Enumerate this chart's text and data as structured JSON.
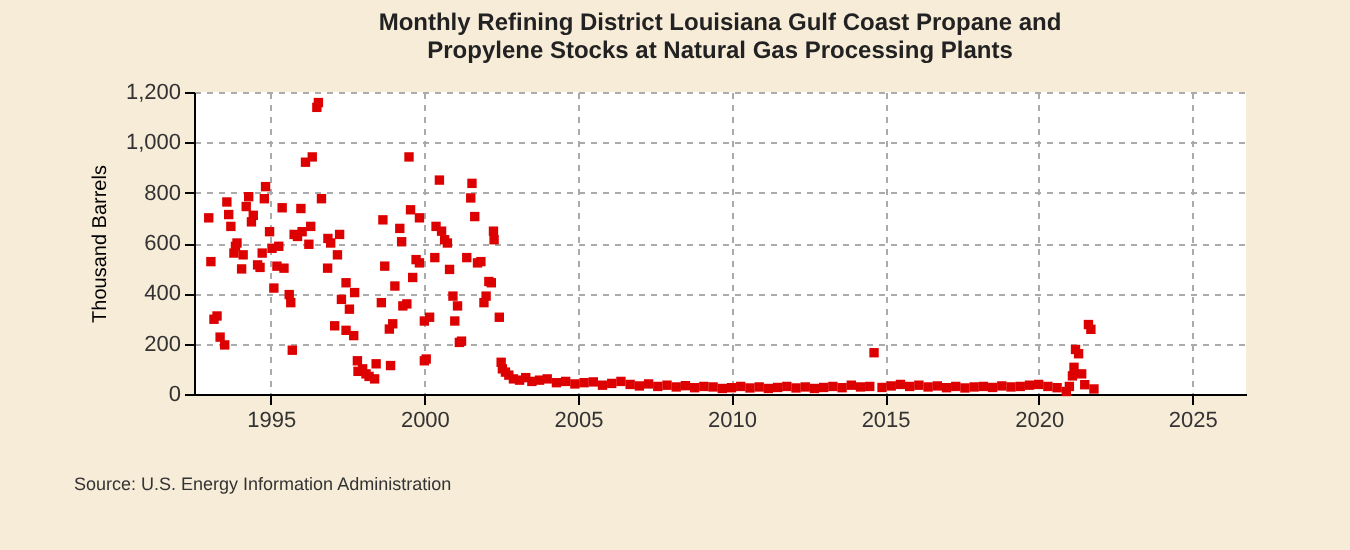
{
  "chart_data": {
    "type": "scatter",
    "title": "Monthly Refining District Louisiana Gulf Coast Propane and Propylene Stocks at Natural Gas Processing Plants",
    "ylabel": "Thousand Barrels",
    "annotations": [
      "Source: U.S. Energy Information Administration"
    ],
    "x": [
      1992.98,
      1993.05,
      1993.15,
      1993.25,
      1993.35,
      1993.5,
      1993.57,
      1993.63,
      1993.7,
      1993.85,
      1993.9,
      1993.8,
      1994.1,
      1994.05,
      1994.2,
      1994.28,
      1994.37,
      1994.43,
      1994.57,
      1994.65,
      1994.72,
      1994.83,
      1994.79,
      1994.96,
      1995.04,
      1995.1,
      1995.2,
      1995.26,
      1995.37,
      1995.43,
      1995.6,
      1995.65,
      1995.7,
      1995.76,
      1995.87,
      1995.98,
      1996.02,
      1996.13,
      1996.24,
      1996.3,
      1996.35,
      1996.5,
      1996.55,
      1996.65,
      1996.86,
      1996.95,
      1997.24,
      1997.17,
      1996.85,
      1997.45,
      1997.3,
      1997.73,
      1997.56,
      1997.08,
      1997.45,
      1997.7,
      1997.82,
      1997.99,
      1998.1,
      1998.2,
      1998.38,
      1998.43,
      1997.84,
      1998.9,
      1998.6,
      1998.65,
      1998.71,
      1998.86,
      1998.97,
      1999.04,
      1999.2,
      1999.26,
      1999.3,
      1999.43,
      1999.5,
      1999.55,
      1999.62,
      1999.73,
      1999.84,
      1999.84,
      2000.0,
      2000.0,
      2000.06,
      2000.17,
      2000.34,
      2000.38,
      2000.49,
      2000.56,
      2000.66,
      2000.75,
      2000.82,
      2000.93,
      2000.99,
      2001.08,
      2001.14,
      2001.21,
      2001.38,
      2001.55,
      2001.51,
      2001.64,
      2001.73,
      2001.84,
      2001.94,
      2002.01,
      2002.1,
      2002.18,
      2002.25,
      2002.27,
      2002.44,
      2002.5,
      2002.54,
      2002.64,
      2002.75,
      2002.9,
      2003.1,
      2003.3,
      2003.5,
      2003.75,
      2004.0,
      2004.3,
      2004.6,
      2004.9,
      2005.2,
      2005.5,
      2005.8,
      2006.1,
      2006.4,
      2006.7,
      2007.0,
      2007.3,
      2007.6,
      2007.9,
      2008.2,
      2008.5,
      2008.8,
      2009.1,
      2009.4,
      2009.7,
      2010.0,
      2010.3,
      2010.6,
      2010.9,
      2011.2,
      2011.5,
      2011.8,
      2012.1,
      2012.4,
      2012.7,
      2013.0,
      2013.3,
      2013.6,
      2013.9,
      2014.2,
      2014.5,
      2014.64,
      2014.9,
      2015.2,
      2015.5,
      2015.8,
      2016.1,
      2016.4,
      2016.7,
      2017.0,
      2017.3,
      2017.6,
      2017.9,
      2018.2,
      2018.5,
      2018.8,
      2019.1,
      2019.4,
      2019.7,
      2020.0,
      2020.3,
      2020.6,
      2020.9,
      2021.0,
      2021.1,
      2021.15,
      2021.2,
      2021.3,
      2021.4,
      2021.5,
      2021.62,
      2021.7,
      2021.8
    ],
    "series": [
      {
        "color": "#dd0000",
        "values": [
          700,
          526,
          297,
          310,
          226,
          195,
          763,
          713,
          666,
          587,
          600,
          560,
          553,
          497,
          745,
          784,
          684,
          710,
          513,
          503,
          560,
          824,
          776,
          645,
          579,
          421,
          508,
          587,
          740,
          500,
          395,
          363,
          174,
          634,
          626,
          737,
          645,
          921,
          595,
          666,
          942,
          1139,
          1158,
          776,
          618,
          600,
          634,
          553,
          500,
          442,
          376,
          403,
          337,
          271,
          253,
          232,
          132,
          100,
          80,
          70,
          60,
          120,
          90,
          113,
          363,
          692,
          508,
          258,
          279,
          429,
          658,
          605,
          350,
          358,
          942,
          732,
          463,
          534,
          700,
          521,
          290,
          132,
          139,
          305,
          542,
          666,
          850,
          647,
          613,
          600,
          495,
          389,
          290,
          350,
          205,
          210,
          542,
          837,
          779,
          705,
          521,
          526,
          363,
          389,
          447,
          442,
          647,
          613,
          305,
          126,
          100,
          87,
          75,
          60,
          55,
          65,
          50,
          55,
          60,
          45,
          50,
          40,
          45,
          48,
          35,
          42,
          50,
          38,
          32,
          40,
          30,
          35,
          28,
          33,
          25,
          30,
          28,
          22,
          25,
          30,
          24,
          28,
          22,
          26,
          30,
          24,
          28,
          22,
          26,
          30,
          25,
          35,
          28,
          30,
          164,
          26,
          32,
          38,
          30,
          35,
          28,
          32,
          25,
          30,
          24,
          28,
          30,
          26,
          32,
          28,
          30,
          35,
          38,
          30,
          25,
          10,
          30,
          72,
          106,
          177,
          160,
          80,
          37,
          276,
          257,
          20
        ]
      }
    ],
    "xlim": [
      1992.5,
      2026.75
    ],
    "xticks": [
      1995,
      2000,
      2005,
      2010,
      2015,
      2020,
      2025
    ],
    "ylim": [
      0,
      1200
    ],
    "yticks": [
      0,
      200,
      400,
      600,
      800,
      {
        "value": 1000,
        "label": "1,000"
      },
      {
        "value": 1200,
        "label": "1,200"
      }
    ],
    "grid": true,
    "marker": "square"
  }
}
